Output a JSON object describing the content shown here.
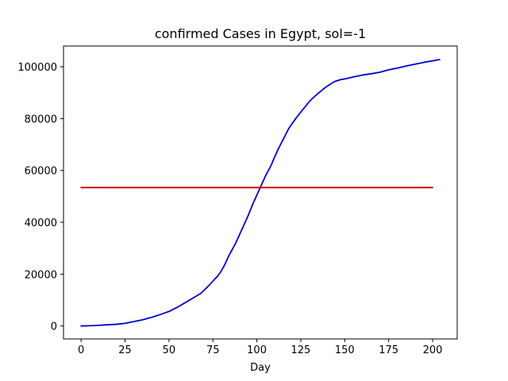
{
  "chart_data": {
    "type": "line",
    "title": "confirmed Cases in Egypt, sol=-1",
    "xlabel": "Day",
    "ylabel": "",
    "xlim": [
      -10,
      214
    ],
    "ylim": [
      -5000,
      108000
    ],
    "x_ticks": [
      0,
      25,
      50,
      75,
      100,
      125,
      150,
      175,
      200
    ],
    "y_ticks": [
      0,
      20000,
      40000,
      60000,
      80000,
      100000
    ],
    "grid": false,
    "series": [
      {
        "color": "#0000cc",
        "x": [
          0,
          5,
          10,
          15,
          20,
          25,
          30,
          35,
          40,
          45,
          50,
          55,
          60,
          63,
          65,
          68,
          70,
          73,
          75,
          78,
          80,
          82,
          84,
          86,
          88,
          90,
          92,
          95,
          98,
          100,
          103,
          105,
          108,
          110,
          112,
          115,
          118,
          120,
          123,
          125,
          128,
          130,
          132,
          135,
          138,
          140,
          143,
          145,
          148,
          150,
          155,
          160,
          165,
          170,
          175,
          180,
          185,
          190,
          195,
          200,
          204
        ],
        "values": [
          0,
          100,
          250,
          450,
          650,
          1000,
          1700,
          2400,
          3300,
          4400,
          5600,
          7300,
          9300,
          10500,
          11300,
          12500,
          13800,
          15800,
          17300,
          19500,
          21500,
          24000,
          27000,
          29500,
          32000,
          35000,
          38000,
          42500,
          47500,
          50500,
          55000,
          58000,
          61800,
          65000,
          68000,
          72000,
          76000,
          78000,
          80800,
          82500,
          85000,
          86700,
          88000,
          89800,
          91500,
          92500,
          93800,
          94500,
          95100,
          95300,
          96100,
          96800,
          97300,
          97900,
          98800,
          99500,
          100300,
          101000,
          101700,
          102300,
          102800
        ]
      },
      {
        "color": "#cc0000",
        "x": [
          0,
          200
        ],
        "values": [
          53400,
          53400
        ]
      }
    ]
  }
}
